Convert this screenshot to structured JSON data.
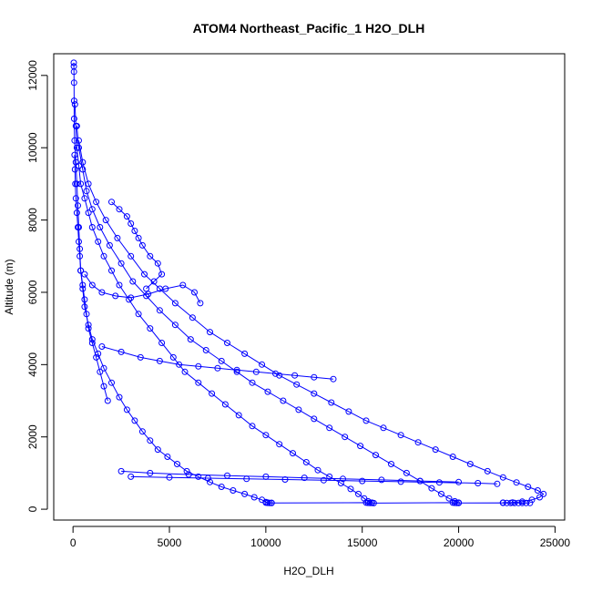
{
  "chart_data": {
    "type": "scatter",
    "title": "ATOM4 Northeast_Pacific_1 H2O_DLH",
    "xlabel": "H2O_DLH",
    "ylabel": "Altitude (m)",
    "xlim": [
      -1000,
      25500
    ],
    "ylim": [
      -300,
      12600
    ],
    "xticks": [
      "0",
      "5000",
      "10000",
      "15000",
      "20000",
      "25000"
    ],
    "yticks": [
      "0",
      "2000",
      "4000",
      "6000",
      "8000",
      "10000",
      "12000"
    ],
    "color": "#0000ff",
    "marker": "open-circle",
    "connected": true,
    "series": [
      {
        "x": [
          40,
          45,
          50,
          55,
          60,
          60,
          80,
          150,
          200,
          250,
          300,
          350,
          400,
          500,
          600,
          800,
          1000,
          1300,
          1600,
          2000,
          2400,
          2800,
          3200,
          3600,
          4000,
          4400,
          4900,
          5400,
          5900,
          6500,
          7100,
          7700,
          8300,
          8900,
          9400,
          9800,
          10000,
          10100,
          10300
        ],
        "y": [
          12350,
          12250,
          12100,
          11800,
          11300,
          10800,
          10200,
          9600,
          9000,
          8400,
          7800,
          7200,
          6600,
          6100,
          5600,
          5100,
          4700,
          4300,
          3900,
          3500,
          3100,
          2750,
          2450,
          2150,
          1900,
          1650,
          1450,
          1250,
          1050,
          900,
          750,
          620,
          520,
          420,
          330,
          260,
          200,
          180,
          175
        ]
      },
      {
        "x": [
          100,
          150,
          200,
          300,
          400,
          600,
          800,
          1000,
          1300,
          1600,
          2000,
          2400,
          2900,
          3400,
          4000,
          4600,
          5200,
          5800,
          6500,
          7200,
          7900,
          8600,
          9300,
          10000,
          10700,
          11400,
          12100,
          12700,
          13300,
          13900,
          14400,
          14800,
          15100,
          15300,
          15500
        ],
        "y": [
          11200,
          10600,
          10000,
          9500,
          9000,
          8600,
          8200,
          7800,
          7400,
          7000,
          6600,
          6200,
          5800,
          5400,
          5000,
          4600,
          4200,
          3800,
          3500,
          3200,
          2900,
          2600,
          2300,
          2050,
          1800,
          1550,
          1300,
          1080,
          900,
          720,
          560,
          420,
          300,
          220,
          180
        ]
      },
      {
        "x": [
          200,
          300,
          500,
          700,
          1000,
          1400,
          1900,
          2500,
          3100,
          3800,
          4500,
          5300,
          6100,
          6900,
          7700,
          8500,
          9300,
          10100,
          10900,
          11700,
          12500,
          13300,
          14100,
          14900,
          15700,
          16500,
          17300,
          18000,
          18600,
          19100,
          19500,
          19800,
          20000
        ],
        "y": [
          10600,
          10000,
          9400,
          8800,
          8300,
          7800,
          7300,
          6800,
          6300,
          5900,
          5500,
          5100,
          4700,
          4400,
          4100,
          3800,
          3500,
          3250,
          3000,
          2750,
          2500,
          2250,
          2000,
          1750,
          1500,
          1250,
          1000,
          780,
          580,
          420,
          300,
          220,
          180
        ]
      },
      {
        "x": [
          300,
          500,
          800,
          1200,
          1700,
          2300,
          3000,
          3700,
          4500,
          5300,
          6200,
          7100,
          8000,
          8900,
          9800,
          10700,
          11600,
          12500,
          13400,
          14300,
          15200,
          16100,
          17000,
          17900,
          18800,
          19700,
          20600,
          21500,
          22300,
          23000,
          23600,
          24100,
          24400,
          24200,
          23800,
          23300,
          22800,
          22300
        ],
        "y": [
          10200,
          9600,
          9000,
          8500,
          8000,
          7500,
          7000,
          6500,
          6100,
          5700,
          5300,
          4900,
          4600,
          4300,
          4000,
          3700,
          3450,
          3200,
          2950,
          2700,
          2450,
          2250,
          2050,
          1850,
          1650,
          1450,
          1250,
          1050,
          880,
          740,
          620,
          520,
          420,
          330,
          260,
          210,
          185,
          180
        ]
      },
      {
        "x": [
          2500,
          4000,
          6000,
          8000,
          10000,
          12000,
          14000,
          16000,
          18000,
          20000
        ],
        "y": [
          1050,
          1000,
          960,
          930,
          900,
          870,
          840,
          810,
          780,
          750
        ]
      },
      {
        "x": [
          3000,
          5000,
          7000,
          9000,
          11000,
          13000,
          15000,
          17000,
          19000,
          21000,
          22000
        ],
        "y": [
          900,
          880,
          860,
          840,
          820,
          800,
          780,
          760,
          740,
          720,
          700
        ]
      },
      {
        "x": [
          600,
          1000,
          1500,
          2200,
          3000,
          3900,
          4800,
          5700,
          6300,
          6600
        ],
        "y": [
          6500,
          6200,
          6000,
          5900,
          5850,
          5950,
          6100,
          6200,
          6000,
          5700
        ]
      },
      {
        "x": [
          1500,
          2500,
          3500,
          4500,
          5500,
          6500,
          7500,
          8500,
          9500,
          10500,
          11500,
          12500,
          13500
        ],
        "y": [
          4500,
          4350,
          4200,
          4100,
          4000,
          3950,
          3900,
          3850,
          3800,
          3750,
          3700,
          3650,
          3600
        ]
      },
      {
        "x": [
          80,
          100,
          120,
          150,
          200,
          250,
          300,
          350,
          400,
          500,
          600,
          700,
          800,
          1000,
          1200,
          1400,
          1600,
          1800
        ],
        "y": [
          9800,
          9400,
          9000,
          8600,
          8200,
          7800,
          7400,
          7000,
          6600,
          6200,
          5800,
          5400,
          5000,
          4600,
          4200,
          3800,
          3400,
          3000
        ]
      },
      {
        "x": [
          2000,
          2400,
          2800,
          3000,
          3200,
          3400,
          3600,
          4000,
          4400,
          4600,
          4200,
          3800
        ],
        "y": [
          8500,
          8300,
          8100,
          7900,
          7700,
          7500,
          7300,
          7000,
          6800,
          6500,
          6300,
          6100
        ]
      },
      {
        "x": [
          10000,
          10100,
          10200,
          10300,
          15200,
          15300,
          15400,
          15500,
          15600,
          19700,
          19800,
          19900,
          20000,
          22300,
          22500,
          22700,
          22900,
          23100,
          23300,
          23500,
          23700
        ],
        "y": [
          180,
          175,
          172,
          170,
          180,
          175,
          172,
          170,
          168,
          180,
          176,
          172,
          170,
          175,
          172,
          170,
          170,
          170,
          170,
          170,
          172
        ]
      }
    ]
  }
}
